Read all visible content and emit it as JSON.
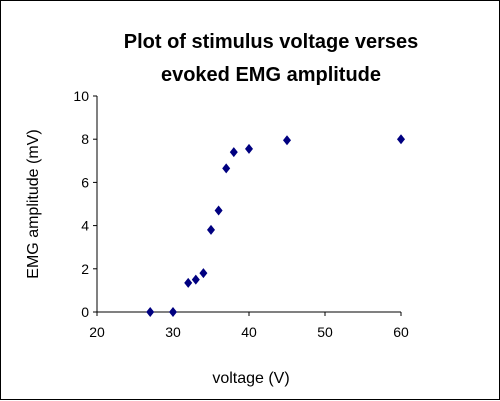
{
  "chart_data": {
    "type": "scatter",
    "title_lines": [
      "Plot of stimulus voltage verses",
      "evoked EMG amplitude"
    ],
    "xlabel": "voltage (V)",
    "ylabel": "EMG amplitude (mV)",
    "xlim": [
      20,
      60
    ],
    "ylim": [
      0,
      10
    ],
    "xticks": [
      "20",
      "30",
      "40",
      "50",
      "60"
    ],
    "yticks": [
      "0",
      "2",
      "4",
      "6",
      "8",
      "10"
    ],
    "grid": false,
    "legend": "none",
    "marker_color": "#000080",
    "points": [
      {
        "x": 27,
        "y": 0.0
      },
      {
        "x": 30,
        "y": 0.0
      },
      {
        "x": 32,
        "y": 1.35
      },
      {
        "x": 33,
        "y": 1.5
      },
      {
        "x": 34,
        "y": 1.8
      },
      {
        "x": 35,
        "y": 3.8
      },
      {
        "x": 36,
        "y": 4.7
      },
      {
        "x": 37,
        "y": 6.65
      },
      {
        "x": 38,
        "y": 7.4
      },
      {
        "x": 40,
        "y": 7.55
      },
      {
        "x": 45,
        "y": 7.95
      },
      {
        "x": 60,
        "y": 8.0
      }
    ]
  }
}
